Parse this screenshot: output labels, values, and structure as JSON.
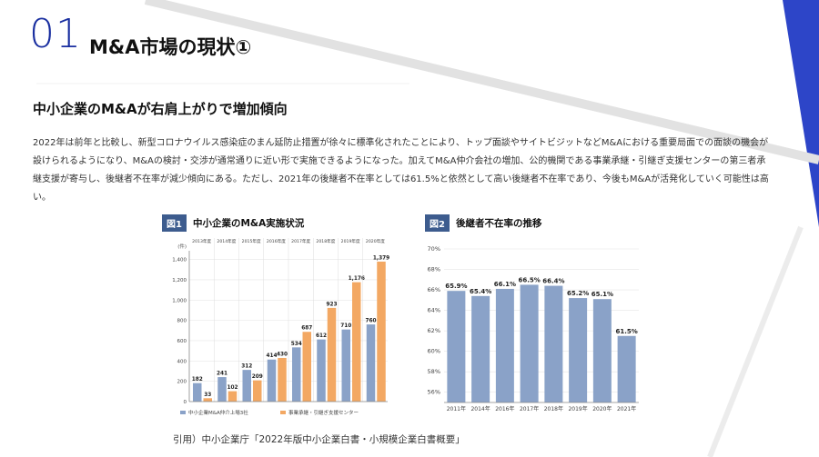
{
  "header": {
    "number": "01",
    "title": "M&A市場の現状①"
  },
  "subtitle": "中小企業のM&Aが右肩上がりで増加傾向",
  "body_text": "2022年は前年と比較し、新型コロナウイルス感染症のまん延防止措置が徐々に標準化されたことにより、トップ面談やサイトビジットなどM&Aにおける重要局面での面談の機会が設けられるようになり、M&Aの検討・交渉が通常通りに近い形で実施できるようになった。加えてM&A仲介会社の増加、公的機関である事業承継・引継ぎ支援センターの第三者承継支援が寄与し、後継者不在率が減少傾向にある。ただし、2021年の後継者不在率としては61.5%と依然として高い後継者不在率であり、今後もM&Aが活発化していく可能性は高い。",
  "figure1": {
    "tag": "図1",
    "title": "中小企業のM&A実施状況"
  },
  "figure2": {
    "tag": "図2",
    "title": "後継者不在率の推移"
  },
  "citation": "引用）中小企業庁「2022年版中小企業白書・小規模企業白書概要」",
  "colors": {
    "accent": "#1a2fa0",
    "series_blue": "#8aa2c8",
    "series_orange": "#f3a863",
    "fig_tag": "#3d5c8e"
  },
  "chart_data": [
    {
      "type": "bar",
      "categories": [
        "2013年度",
        "2014年度",
        "2015年度",
        "2016年度",
        "2017年度",
        "2018年度",
        "2019年度",
        "2020年度"
      ],
      "series": [
        {
          "name": "中小企業M&A仲介上場3社",
          "values": [
            182,
            241,
            312,
            414,
            534,
            612,
            710,
            760
          ],
          "labels": [
            "182",
            "241",
            "312",
            "414",
            "534",
            "612",
            "710",
            "760"
          ]
        },
        {
          "name": "事業承継・引継ぎ支援センター",
          "values": [
            33,
            102,
            209,
            430,
            687,
            923,
            1176,
            1379
          ],
          "labels": [
            "33",
            "102",
            "209",
            "430",
            "687",
            "923",
            "1,176",
            "1,379"
          ]
        }
      ],
      "ylim": [
        0,
        1450
      ],
      "yticks": [
        0,
        200,
        400,
        600,
        800,
        1000,
        1200,
        1400
      ],
      "ytick_labels": [
        "0",
        "200",
        "400",
        "600",
        "800",
        "1,000",
        "1,200",
        "1,400"
      ],
      "yunit": "(件)",
      "legend": "bottom"
    },
    {
      "type": "bar",
      "categories": [
        "2011年",
        "2014年",
        "2016年",
        "2017年",
        "2018年",
        "2019年",
        "2020年",
        "2021年"
      ],
      "values": [
        65.9,
        65.4,
        66.1,
        66.5,
        66.4,
        65.2,
        65.1,
        61.5
      ],
      "labels": [
        "65.9%",
        "65.4%",
        "66.1%",
        "66.5%",
        "66.4%",
        "65.2%",
        "65.1%",
        "61.5%"
      ],
      "ylim": [
        55,
        70
      ],
      "yticks": [
        56,
        58,
        60,
        62,
        64,
        66,
        68,
        70
      ],
      "ytick_labels": [
        "56%",
        "58%",
        "60%",
        "62%",
        "64%",
        "66%",
        "68%",
        "70%"
      ]
    }
  ]
}
